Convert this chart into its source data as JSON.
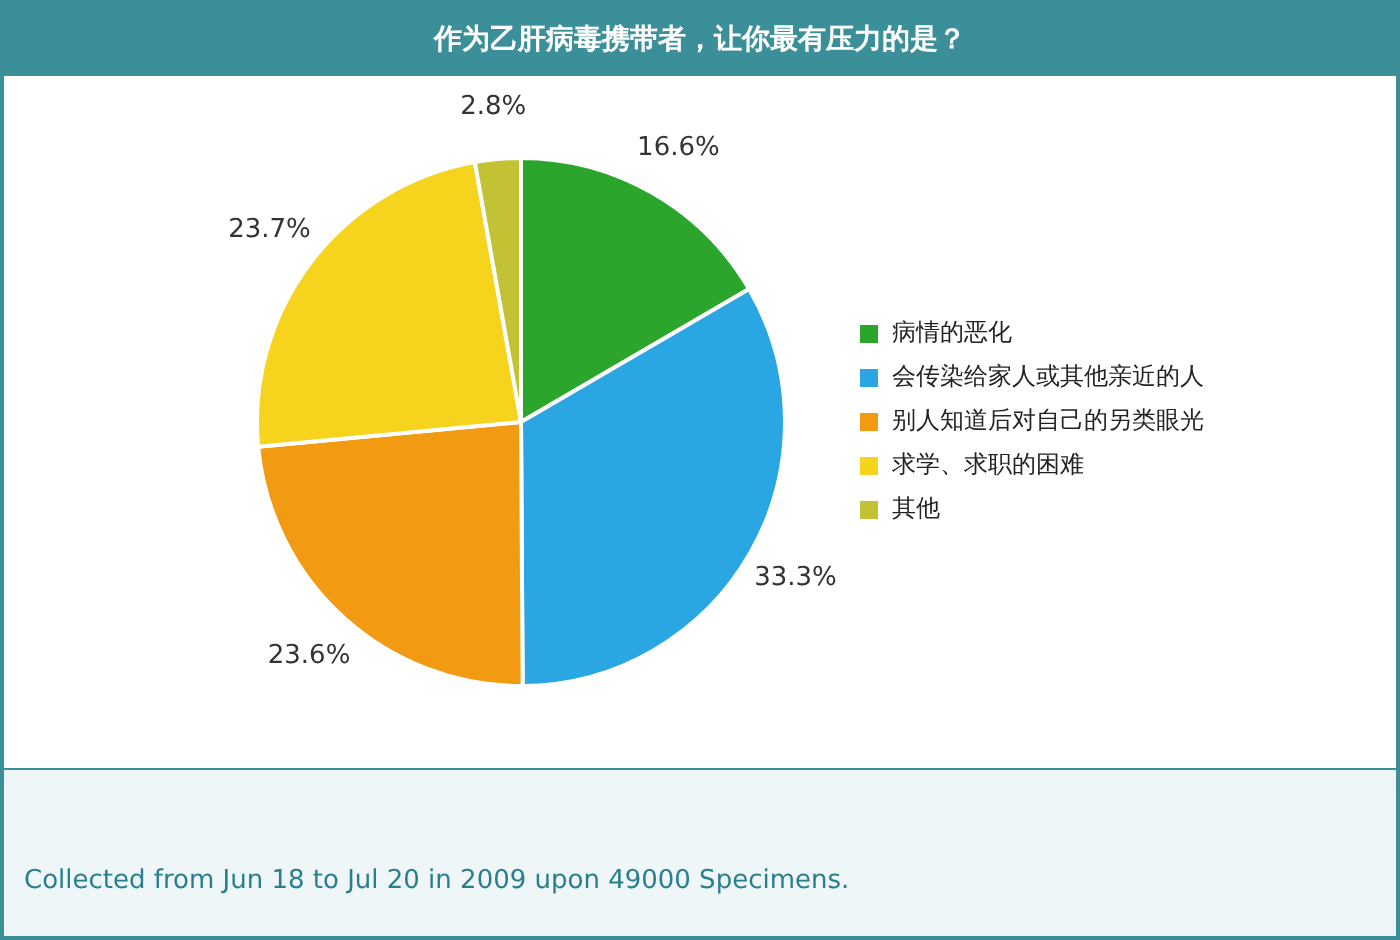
{
  "chart_data": {
    "type": "pie",
    "title": "作为乙肝病毒携带者，让你最有压力的是？",
    "categories": [
      "病情的恶化",
      "会传染给家人或其他亲近的人",
      "别人知道后对自己的另类眼光",
      "求学、求职的困难",
      "其他"
    ],
    "values": [
      16.6,
      33.3,
      23.6,
      23.7,
      2.8
    ],
    "colors": [
      "#2ba52b",
      "#2aa7e2",
      "#f29b12",
      "#f6d31c",
      "#c3c234"
    ],
    "value_labels": [
      "16.6%",
      "33.3%",
      "23.6%",
      "23.7%",
      "2.8%"
    ],
    "legend": "right",
    "annotations": [
      "Collected from Jun 18 to Jul 20 in 2009 upon 49000 Specimens."
    ]
  }
}
